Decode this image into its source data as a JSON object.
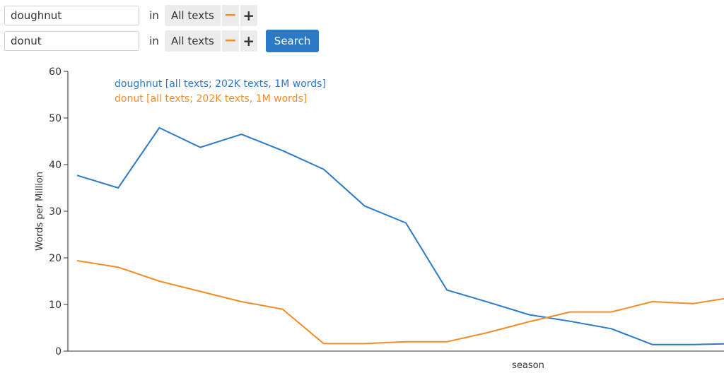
{
  "queries": [
    {
      "term": "doughnut",
      "in_label": "in",
      "corpus": "All texts",
      "minus": "−",
      "plus": "+"
    },
    {
      "term": "donut",
      "in_label": "in",
      "corpus": "All texts",
      "minus": "−",
      "plus": "+"
    }
  ],
  "search_label": "Search",
  "colors": {
    "doughnut": "#2a7ac8",
    "donut": "#f28c28",
    "axis": "#333333"
  },
  "chart_data": {
    "type": "line",
    "xlabel": "season",
    "ylabel": "Words per Million",
    "ylim": [
      0,
      60
    ],
    "yticks": [
      0,
      10,
      20,
      30,
      40,
      50,
      60
    ],
    "x": [
      1,
      2,
      3,
      4,
      5,
      6,
      7,
      8,
      9,
      10,
      11,
      12,
      13,
      14,
      15,
      16,
      17
    ],
    "grid": false,
    "legend_position": "top-left",
    "series": [
      {
        "name": "doughnut [all texts; 202K texts, 1M words]",
        "color": "#2a7ac8",
        "values": [
          37.7,
          35.0,
          47.9,
          43.7,
          46.5,
          43.0,
          39.0,
          31.1,
          27.5,
          13.1,
          10.5,
          7.8,
          6.4,
          4.8,
          1.4,
          1.4,
          1.6
        ]
      },
      {
        "name": "donut [all texts; 202K texts, 1M words]",
        "color": "#f28c28",
        "values": [
          19.4,
          18.0,
          15.0,
          12.8,
          10.6,
          9.0,
          1.6,
          1.6,
          2.0,
          2.0,
          4.0,
          6.3,
          8.4,
          8.4,
          10.6,
          10.2,
          11.6
        ]
      }
    ]
  }
}
